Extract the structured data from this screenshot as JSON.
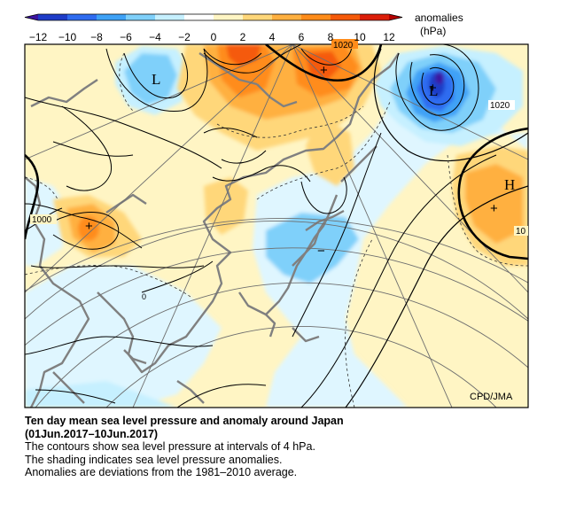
{
  "colorbar": {
    "title": "anomalies",
    "units": "(hPa)",
    "ticks": [
      "−12",
      "−10",
      "−8",
      "−6",
      "−4",
      "−2",
      "0",
      "2",
      "4",
      "6",
      "8",
      "10",
      "12"
    ],
    "colors": [
      "#1e3cc8",
      "#2f6cf0",
      "#3fa2f6",
      "#7fd0fa",
      "#c6f0ff",
      "#ffffff",
      "#fff5c4",
      "#ffd77a",
      "#ffb040",
      "#ff8c1a",
      "#f55a0a",
      "#dc1e0a"
    ],
    "lower_arrow": "#3c14a0",
    "upper_arrow": "#b40000"
  },
  "map": {
    "credit": "CPD/JMA",
    "pressure_labels": [
      "1020",
      "1020",
      "1000",
      "10"
    ],
    "centers": [
      "L",
      "L",
      "H"
    ],
    "markers": [
      "+",
      "+",
      "+",
      "+",
      "−"
    ],
    "small_label": "0"
  },
  "caption": {
    "title": "Ten day mean sea level pressure and anomaly around Japan",
    "period": "(01Jun.2017–10Jun.2017)",
    "line1": "The contours show sea level pressure at intervals of 4 hPa.",
    "line2": "The shading indicates sea level pressure anomalies.",
    "line3": "Anomalies are deviations from the 1981–2010 average."
  }
}
